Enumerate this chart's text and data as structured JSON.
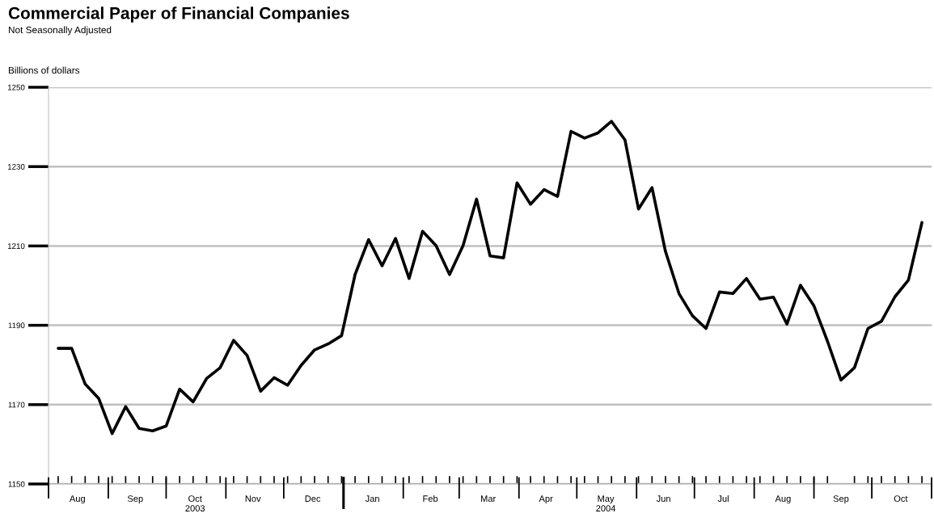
{
  "chart_data": {
    "type": "line",
    "title": "Commercial Paper of Financial Companies",
    "subtitle": "Not Seasonally Adjusted",
    "ylabel": "Billions of dollars",
    "x": [
      "2003-08-06",
      "2003-08-13",
      "2003-08-20",
      "2003-08-27",
      "2003-09-03",
      "2003-09-10",
      "2003-09-17",
      "2003-09-24",
      "2003-10-01",
      "2003-10-08",
      "2003-10-15",
      "2003-10-22",
      "2003-10-29",
      "2003-11-05",
      "2003-11-12",
      "2003-11-19",
      "2003-11-26",
      "2003-12-03",
      "2003-12-10",
      "2003-12-17",
      "2003-12-24",
      "2003-12-31",
      "2004-01-07",
      "2004-01-14",
      "2004-01-21",
      "2004-01-28",
      "2004-02-04",
      "2004-02-11",
      "2004-02-18",
      "2004-02-25",
      "2004-03-03",
      "2004-03-10",
      "2004-03-17",
      "2004-03-24",
      "2004-03-31",
      "2004-04-07",
      "2004-04-14",
      "2004-04-21",
      "2004-04-28",
      "2004-05-05",
      "2004-05-12",
      "2004-05-19",
      "2004-05-26",
      "2004-06-02",
      "2004-06-09",
      "2004-06-16",
      "2004-06-23",
      "2004-06-30",
      "2004-07-07",
      "2004-07-14",
      "2004-07-21",
      "2004-07-28",
      "2004-08-04",
      "2004-08-11",
      "2004-08-18",
      "2004-08-25",
      "2004-09-01",
      "2004-09-08",
      "2004-09-15",
      "2004-09-22",
      "2004-09-29",
      "2004-10-06",
      "2004-10-13",
      "2004-10-20",
      "2004-10-27"
    ],
    "series": [
      {
        "color": "#000000",
        "values": [
          1184.2,
          1184.2,
          1175.2,
          1171.6,
          1162.7,
          1169.5,
          1164.0,
          1163.4,
          1164.6,
          1173.9,
          1170.7,
          1176.6,
          1179.3,
          1186.2,
          1182.4,
          1173.4,
          1176.8,
          1174.9,
          1179.9,
          1183.8,
          1185.3,
          1187.4,
          1202.8,
          1211.6,
          1205.0,
          1211.9,
          1201.8,
          1213.7,
          1210.1,
          1202.8,
          1210.1,
          1221.8,
          1207.5,
          1207.0,
          1225.9,
          1220.5,
          1224.2,
          1222.5,
          1238.9,
          1237.2,
          1238.5,
          1241.4,
          1236.7,
          1219.3,
          1224.7,
          1208.6,
          1198.0,
          1192.4,
          1189.2,
          1198.4,
          1198.0,
          1201.8,
          1196.6,
          1197.1,
          1190.3,
          1200.1,
          1194.9,
          1186.0,
          1176.2,
          1179.3,
          1189.2,
          1191.0,
          1197.2,
          1201.4,
          1215.9
        ]
      }
    ],
    "xlim": [
      "2003-08-01",
      "2004-11-01"
    ],
    "xticks": [
      {
        "value": "2003-08-16",
        "label": "Aug"
      },
      {
        "value": "2003-09-15",
        "label": "Sep"
      },
      {
        "value": "2003-10-16",
        "label": "Oct\n2003"
      },
      {
        "value": "2003-11-15",
        "label": "Nov"
      },
      {
        "value": "2003-12-16",
        "label": "Dec"
      },
      {
        "value": "2004-01-16",
        "label": "Jan"
      },
      {
        "value": "2004-02-15",
        "label": "Feb"
      },
      {
        "value": "2004-03-16",
        "label": "Mar"
      },
      {
        "value": "2004-04-15",
        "label": "Apr"
      },
      {
        "value": "2004-05-16",
        "label": "May\n2004"
      },
      {
        "value": "2004-06-15",
        "label": "Jun"
      },
      {
        "value": "2004-07-16",
        "label": "Jul"
      },
      {
        "value": "2004-08-16",
        "label": "Aug"
      },
      {
        "value": "2004-09-15",
        "label": "Sep"
      },
      {
        "value": "2004-10-16",
        "label": "Oct"
      }
    ],
    "ylim": [
      1150,
      1250
    ],
    "yticks": [
      1150,
      1170,
      1190,
      1210,
      1230,
      1250
    ],
    "grid": "y",
    "line_style": "solid",
    "marker": "none"
  }
}
